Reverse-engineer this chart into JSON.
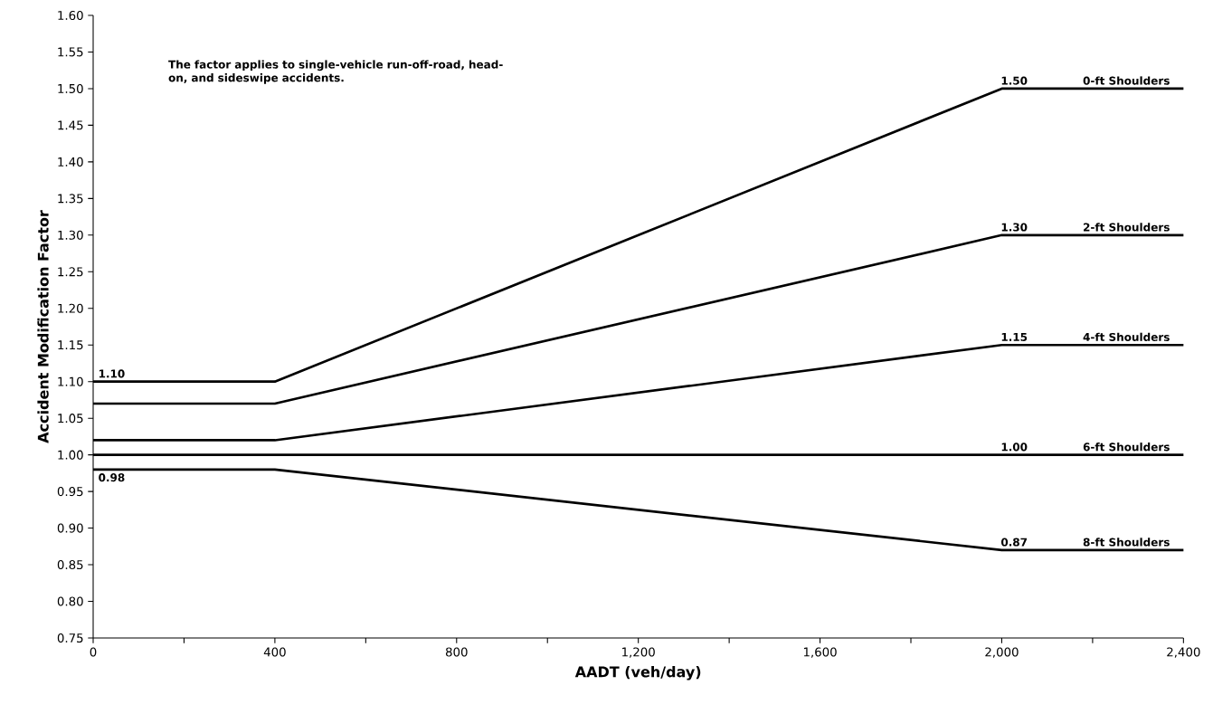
{
  "chart_data": {
    "type": "line",
    "xlabel": "AADT (veh/day)",
    "ylabel": "Accident Modification Factor",
    "x": [
      0,
      400,
      2000,
      2400
    ],
    "series": [
      {
        "name": "0-ft Shoulders",
        "color": "#000000",
        "values": [
          1.1,
          1.1,
          1.5,
          1.5
        ],
        "value_labels": [
          "1.10",
          null,
          "1.50",
          null
        ]
      },
      {
        "name": "2-ft Shoulders",
        "color": "#000000",
        "values": [
          1.07,
          1.07,
          1.3,
          1.3
        ],
        "value_labels": [
          null,
          null,
          "1.30",
          null
        ]
      },
      {
        "name": "4-ft Shoulders",
        "color": "#000000",
        "values": [
          1.02,
          1.02,
          1.15,
          1.15
        ],
        "value_labels": [
          null,
          null,
          "1.15",
          null
        ]
      },
      {
        "name": "6-ft Shoulders",
        "color": "#000000",
        "values": [
          1.0,
          1.0,
          1.0,
          1.0
        ],
        "value_labels": [
          null,
          null,
          "1.00",
          null
        ]
      },
      {
        "name": "8-ft Shoulders",
        "color": "#000000",
        "values": [
          0.98,
          0.98,
          0.87,
          0.87
        ],
        "value_labels": [
          "0.98",
          null,
          "0.87",
          null
        ]
      }
    ],
    "annotations": [
      "The factor applies to single-vehicle run-off-road, head-on, and sideswipe accidents."
    ],
    "xlim": [
      0,
      2400
    ],
    "ylim": [
      0.75,
      1.6
    ],
    "xticks": [
      0,
      {
        "value": 200,
        "label": null
      },
      400,
      {
        "value": 600,
        "label": null
      },
      800,
      {
        "value": 1000,
        "label": null
      },
      {
        "value": 1200,
        "label": "1,200"
      },
      {
        "value": 1400,
        "label": null
      },
      {
        "value": 1600,
        "label": "1,600"
      },
      {
        "value": 1800,
        "label": null
      },
      {
        "value": 2000,
        "label": "2,000"
      },
      {
        "value": 2200,
        "label": null
      },
      {
        "value": 2400,
        "label": "2,400"
      }
    ],
    "yticks": [
      {
        "value": 0.75,
        "label": "0.75"
      },
      {
        "value": 0.8,
        "label": "0.80"
      },
      {
        "value": 0.85,
        "label": "0.85"
      },
      {
        "value": 0.9,
        "label": "0.90"
      },
      {
        "value": 0.95,
        "label": "0.95"
      },
      {
        "value": 1.0,
        "label": "1.00"
      },
      {
        "value": 1.05,
        "label": "1.05"
      },
      {
        "value": 1.1,
        "label": "1.10"
      },
      {
        "value": 1.15,
        "label": "1.15"
      },
      {
        "value": 1.2,
        "label": "1.20"
      },
      {
        "value": 1.25,
        "label": "1.25"
      },
      {
        "value": 1.3,
        "label": "1.30"
      },
      {
        "value": 1.35,
        "label": "1.35"
      },
      {
        "value": 1.4,
        "label": "1.40"
      },
      {
        "value": 1.45,
        "label": "1.45"
      },
      {
        "value": 1.5,
        "label": "1.50"
      },
      {
        "value": 1.55,
        "label": "1.55"
      },
      {
        "value": 1.6,
        "label": "1.60"
      }
    ],
    "grid": false,
    "legend": false,
    "marker": "none",
    "line_style": "solid"
  }
}
